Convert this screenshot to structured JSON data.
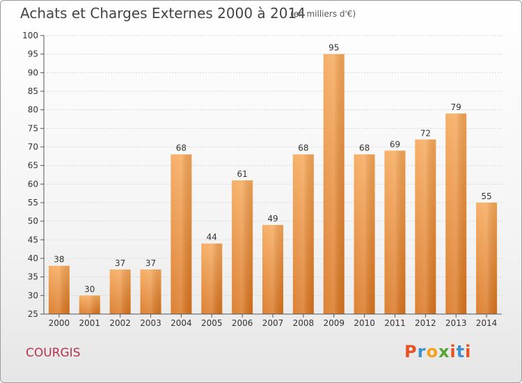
{
  "header": {
    "title": "Achats et Charges Externes 2000 à 2014",
    "subtitle": "(en milliers d'€)"
  },
  "footer": {
    "commune": "COURGIS",
    "brand": "Proxiti",
    "brand_colors": [
      "#e8501e",
      "#3c8fd1",
      "#f5a21b",
      "#5aa431",
      "#e8501e",
      "#3c8fd1",
      "#e8501e"
    ]
  },
  "colors": {
    "bar_top": "#f6a758",
    "bar_bottom": "#d9731d",
    "grid": "#d8d8d8",
    "axis": "#555555"
  },
  "chart_data": {
    "type": "bar",
    "title": "Achats et Charges Externes 2000 à 2014",
    "subtitle": "(en milliers d'€)",
    "xlabel": "",
    "ylabel": "",
    "categories": [
      "2000",
      "2001",
      "2002",
      "2003",
      "2004",
      "2005",
      "2006",
      "2007",
      "2008",
      "2009",
      "2010",
      "2011",
      "2012",
      "2013",
      "2014"
    ],
    "values": [
      38,
      30,
      37,
      37,
      68,
      44,
      61,
      49,
      68,
      95,
      68,
      69,
      72,
      79,
      55
    ],
    "ylim": [
      25,
      100
    ],
    "yticks": [
      25,
      30,
      35,
      40,
      45,
      50,
      55,
      60,
      65,
      70,
      75,
      80,
      85,
      90,
      95,
      100
    ],
    "grid": true,
    "legend": "none"
  }
}
